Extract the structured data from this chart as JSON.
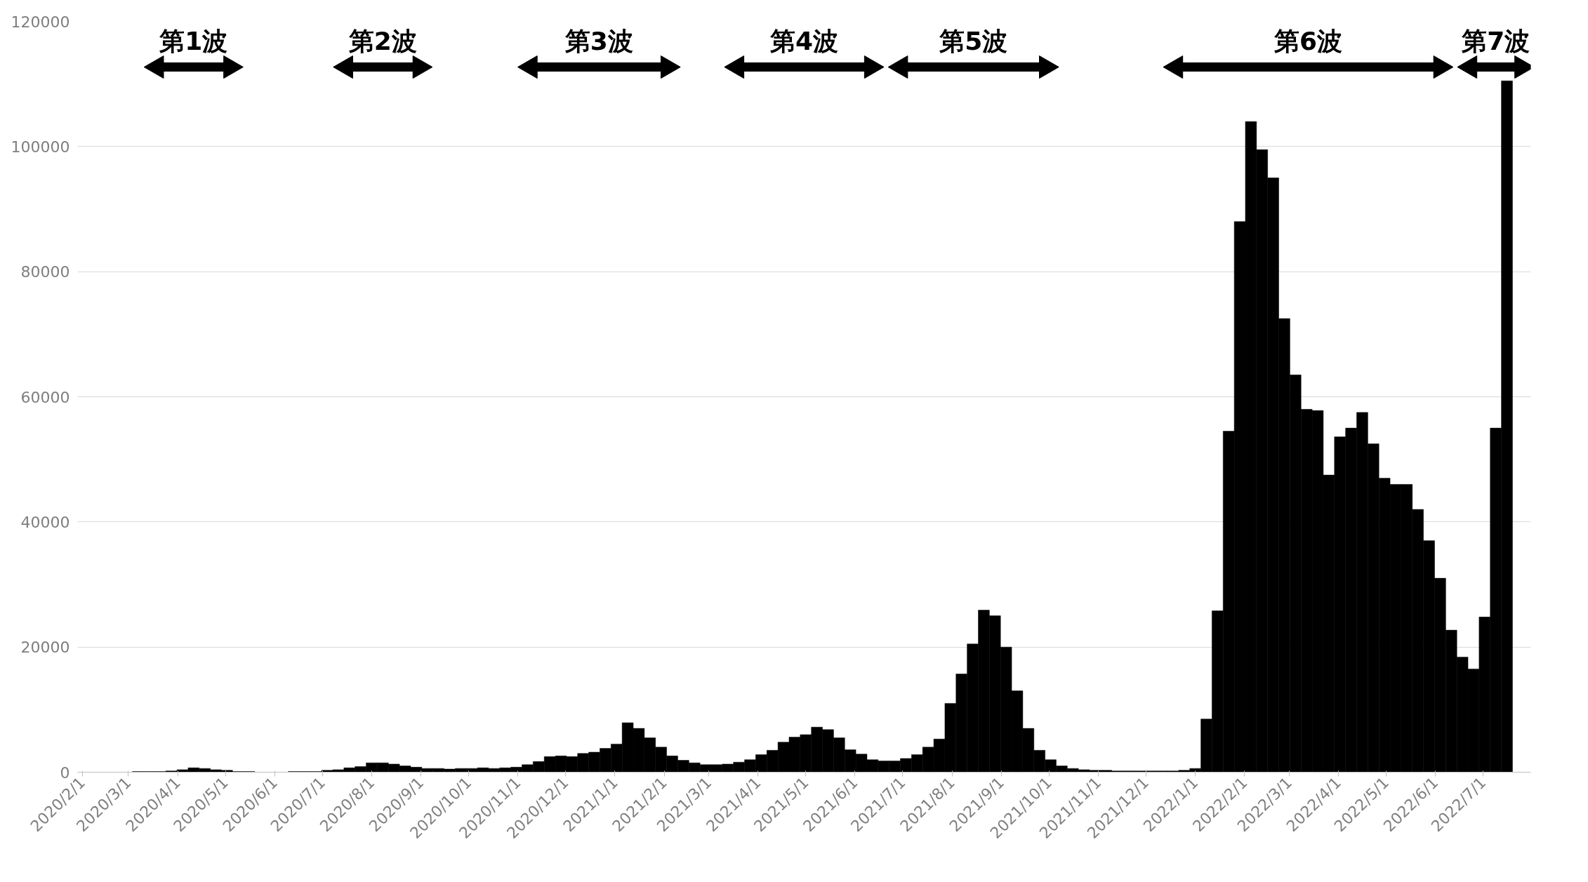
{
  "chart_data": {
    "type": "bar",
    "x": [
      "2020-02-01",
      "2020-02-08",
      "2020-02-15",
      "2020-02-22",
      "2020-02-29",
      "2020-03-07",
      "2020-03-14",
      "2020-03-21",
      "2020-03-28",
      "2020-04-04",
      "2020-04-11",
      "2020-04-18",
      "2020-04-25",
      "2020-05-02",
      "2020-05-09",
      "2020-05-16",
      "2020-05-23",
      "2020-05-30",
      "2020-06-06",
      "2020-06-13",
      "2020-06-20",
      "2020-06-27",
      "2020-07-04",
      "2020-07-11",
      "2020-07-18",
      "2020-07-25",
      "2020-08-01",
      "2020-08-08",
      "2020-08-15",
      "2020-08-22",
      "2020-08-29",
      "2020-09-05",
      "2020-09-12",
      "2020-09-19",
      "2020-09-26",
      "2020-10-03",
      "2020-10-10",
      "2020-10-17",
      "2020-10-24",
      "2020-10-31",
      "2020-11-07",
      "2020-11-14",
      "2020-11-21",
      "2020-11-28",
      "2020-12-05",
      "2020-12-12",
      "2020-12-19",
      "2020-12-26",
      "2021-01-02",
      "2021-01-09",
      "2021-01-16",
      "2021-01-23",
      "2021-01-30",
      "2021-02-06",
      "2021-02-13",
      "2021-02-20",
      "2021-02-27",
      "2021-03-06",
      "2021-03-13",
      "2021-03-20",
      "2021-03-27",
      "2021-04-03",
      "2021-04-10",
      "2021-04-17",
      "2021-04-24",
      "2021-05-01",
      "2021-05-08",
      "2021-05-15",
      "2021-05-22",
      "2021-05-29",
      "2021-06-05",
      "2021-06-12",
      "2021-06-19",
      "2021-06-26",
      "2021-07-03",
      "2021-07-10",
      "2021-07-17",
      "2021-07-24",
      "2021-07-31",
      "2021-08-07",
      "2021-08-14",
      "2021-08-21",
      "2021-08-28",
      "2021-09-04",
      "2021-09-11",
      "2021-09-18",
      "2021-09-25",
      "2021-10-02",
      "2021-10-09",
      "2021-10-16",
      "2021-10-23",
      "2021-10-30",
      "2021-11-06",
      "2021-11-13",
      "2021-11-20",
      "2021-11-27",
      "2021-12-04",
      "2021-12-11",
      "2021-12-18",
      "2021-12-25",
      "2022-01-01",
      "2022-01-08",
      "2022-01-15",
      "2022-01-22",
      "2022-01-29",
      "2022-02-05",
      "2022-02-12",
      "2022-02-19",
      "2022-02-26",
      "2022-03-05",
      "2022-03-12",
      "2022-03-19",
      "2022-03-26",
      "2022-04-02",
      "2022-04-09",
      "2022-04-16",
      "2022-04-23",
      "2022-04-30",
      "2022-05-07",
      "2022-05-14",
      "2022-05-21",
      "2022-05-28",
      "2022-06-04",
      "2022-06-11",
      "2022-06-18",
      "2022-06-25",
      "2022-07-02",
      "2022-07-09",
      "2022-07-16"
    ],
    "series": [
      {
        "color": "#000000",
        "values": [
          0,
          0,
          0,
          0,
          0,
          100,
          100,
          100,
          200,
          400,
          700,
          600,
          400,
          300,
          100,
          100,
          0,
          0,
          0,
          100,
          100,
          100,
          300,
          400,
          700,
          900,
          1500,
          1500,
          1300,
          1000,
          800,
          600,
          600,
          500,
          600,
          600,
          700,
          600,
          700,
          800,
          1200,
          1700,
          2500,
          2600,
          2500,
          3000,
          3200,
          3800,
          4500,
          7900,
          7000,
          5500,
          4000,
          2600,
          1900,
          1500,
          1200,
          1200,
          1300,
          1600,
          2000,
          2800,
          3500,
          4800,
          5600,
          6000,
          7200,
          6800,
          5500,
          3600,
          2900,
          2000,
          1800,
          1800,
          2200,
          2800,
          4000,
          5300,
          11000,
          15700,
          20500,
          25900,
          25000,
          20000,
          13000,
          7000,
          3500,
          2000,
          1000,
          600,
          400,
          300,
          300,
          200,
          200,
          200,
          200,
          200,
          200,
          300,
          600,
          8500,
          25800,
          54500,
          88000,
          104000,
          99500,
          95000,
          72500,
          63500,
          58000,
          57800,
          47500,
          53600,
          55000,
          57500,
          52500,
          47000,
          46000,
          46000,
          42000,
          37000,
          31000,
          22700,
          18400,
          16500,
          24800,
          55000,
          110500
        ]
      },
      {
        "type": "line",
        "color": "#000000",
        "x": [
          "2020-03-19",
          "2020-05-04"
        ],
        "values": [
          112700,
          112700
        ]
      },
      {
        "type": "line",
        "color": "#000000",
        "x": [
          "2020-07-16",
          "2020-08-31"
        ],
        "values": [
          112700,
          112700
        ]
      },
      {
        "type": "line",
        "color": "#000000",
        "x": [
          "2020-11-09",
          "2021-02-03"
        ],
        "values": [
          112700,
          112700
        ]
      },
      {
        "type": "line",
        "color": "#000000",
        "x": [
          "2021-03-19",
          "2021-06-11"
        ],
        "values": [
          112700,
          112700
        ]
      },
      {
        "type": "line",
        "color": "#000000",
        "x": [
          "2021-06-30",
          "2021-09-29"
        ],
        "values": [
          112700,
          112700
        ]
      },
      {
        "type": "line",
        "color": "#000000",
        "x": [
          "2021-12-20",
          "2022-06-04"
        ],
        "values": [
          112700,
          112700
        ]
      },
      {
        "type": "line",
        "color": "#000000",
        "x": [
          "2022-06-23",
          "2022-07-25"
        ],
        "values": [
          112700,
          112700
        ]
      }
    ],
    "annotations": [
      "第1波",
      "第2波",
      "第3波",
      "第4波",
      "第5波",
      "第6波",
      "第7波"
    ],
    "marker": "triangle",
    "xlim": [
      "2020-01-29",
      "2022-07-31"
    ],
    "xticks": [
      {
        "value": "2020-02-01",
        "label": "2020/2/1"
      },
      {
        "value": "2020-03-01",
        "label": "2020/3/1"
      },
      {
        "value": "2020-04-01",
        "label": "2020/4/1"
      },
      {
        "value": "2020-05-01",
        "label": "2020/5/1"
      },
      {
        "value": "2020-06-01",
        "label": "2020/6/1"
      },
      {
        "value": "2020-07-01",
        "label": "2020/7/1"
      },
      {
        "value": "2020-08-01",
        "label": "2020/8/1"
      },
      {
        "value": "2020-09-01",
        "label": "2020/9/1"
      },
      {
        "value": "2020-10-01",
        "label": "2020/10/1"
      },
      {
        "value": "2020-11-01",
        "label": "2020/11/1"
      },
      {
        "value": "2020-12-01",
        "label": "2020/12/1"
      },
      {
        "value": "2021-01-01",
        "label": "2021/1/1"
      },
      {
        "value": "2021-02-01",
        "label": "2021/2/1"
      },
      {
        "value": "2021-03-01",
        "label": "2021/3/1"
      },
      {
        "value": "2021-04-01",
        "label": "2021/4/1"
      },
      {
        "value": "2021-05-01",
        "label": "2021/5/1"
      },
      {
        "value": "2021-06-01",
        "label": "2021/6/1"
      },
      {
        "value": "2021-07-01",
        "label": "2021/7/1"
      },
      {
        "value": "2021-08-01",
        "label": "2021/8/1"
      },
      {
        "value": "2021-09-01",
        "label": "2021/9/1"
      },
      {
        "value": "2021-10-01",
        "label": "2021/10/1"
      },
      {
        "value": "2021-11-01",
        "label": "2021/11/1"
      },
      {
        "value": "2021-12-01",
        "label": "2021/12/1"
      },
      {
        "value": "2022-01-01",
        "label": "2022/1/1"
      },
      {
        "value": "2022-02-01",
        "label": "2022/2/1"
      },
      {
        "value": "2022-03-01",
        "label": "2022/3/1"
      },
      {
        "value": "2022-04-01",
        "label": "2022/4/1"
      },
      {
        "value": "2022-05-01",
        "label": "2022/5/1"
      },
      {
        "value": "2022-06-01",
        "label": "2022/6/1"
      },
      {
        "value": "2022-07-01",
        "label": "2022/7/1"
      }
    ],
    "ylim": [
      0,
      120000
    ],
    "yticks": [
      0,
      20000,
      40000,
      60000,
      80000,
      100000,
      120000
    ],
    "grid": "y"
  }
}
